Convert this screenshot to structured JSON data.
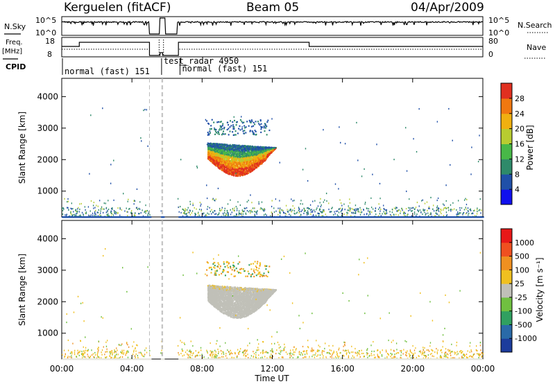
{
  "header": {
    "station": "Kerguelen (fitACF)",
    "beam": "Beam 05",
    "date": "04/Apr/2009"
  },
  "summary_panels": {
    "nsky_label": "N.Sky",
    "nsky_ticks": [
      "10^5",
      "10^0"
    ],
    "nsearch_label": "N.Search",
    "nsearch_ticks": [
      "10^5",
      "10^0"
    ],
    "freq_label_line1": "Freq.",
    "freq_label_line2": "[MHz]",
    "freq_ticks": [
      "18",
      "8"
    ],
    "nave_label": "Nave",
    "nave_ticks": [
      "80",
      "0"
    ],
    "cpid_label": "CPID",
    "cpid_segments": [
      {
        "label": "normal (fast) 151",
        "start_hour": 0.0,
        "end_hour": 5.0
      },
      {
        "label": "test_radar 4950",
        "start_hour": 5.65,
        "end_hour": 6.7
      },
      {
        "label": "normal (fast) 151",
        "start_hour": 6.7,
        "end_hour": 24.0
      }
    ]
  },
  "x_axis": {
    "label": "Time UT",
    "ticks": [
      "00:00",
      "04:00",
      "08:00",
      "12:00",
      "16:00",
      "20:00",
      "00:00"
    ],
    "range_hours": [
      0,
      24
    ]
  },
  "power_panel": {
    "ylabel": "Slant Range [km]",
    "yticks": [
      "4000",
      "3000",
      "2000",
      "1000"
    ],
    "colorbar_label": "Power [dB]",
    "colorbar_ticks": [
      "28",
      "24",
      "20",
      "16",
      "12",
      "8",
      "4"
    ],
    "colors": [
      "#1010ee",
      "#2050a8",
      "#2e8a6a",
      "#48b848",
      "#b8cc30",
      "#f0b010",
      "#f07810",
      "#e03020"
    ]
  },
  "velocity_panel": {
    "ylabel": "Slant Range [km]",
    "yticks": [
      "4000",
      "3000",
      "2000",
      "1000"
    ],
    "colorbar_label": "Velocity [m s⁻¹]",
    "colorbar_ticks": [
      "1000",
      "500",
      "100",
      "25",
      "-25",
      "-100",
      "-500",
      "-1000"
    ],
    "colors": [
      "#1c3c9c",
      "#2a6aa8",
      "#30a060",
      "#70c040",
      "#c0c0b8",
      "#f0c020",
      "#f09020",
      "#f05020",
      "#e81818"
    ]
  },
  "chart_data": {
    "type": "heatmap",
    "title": "Kerguelen (fitACF) Beam 05 04/Apr/2009",
    "xlabel": "Time UT",
    "ylabel": "Slant Range [km]",
    "xlim_hours": [
      0,
      24
    ],
    "ylim_km": [
      180,
      4580
    ],
    "grid": false,
    "colorbars": [
      {
        "panel": "power",
        "label": "Power [dB]",
        "range": [
          0,
          32
        ]
      },
      {
        "panel": "velocity",
        "label": "Velocity [m s⁻¹]",
        "range": [
          -1000,
          1000
        ]
      }
    ],
    "scatter_echo_region": {
      "time_hours": [
        8.3,
        12.2
      ],
      "range_km": [
        1450,
        2550
      ],
      "peak_power_db": 28,
      "velocity_m_s": [
        -25,
        25
      ]
    },
    "upper_echo_region": {
      "time_hours": [
        8.2,
        11.8
      ],
      "range_km": [
        2800,
        3300
      ]
    },
    "near_range_noise_km": [
      200,
      800
    ],
    "data_gaps_hours": [
      [
        5.0,
        5.6
      ],
      [
        5.75,
        6.6
      ]
    ]
  }
}
